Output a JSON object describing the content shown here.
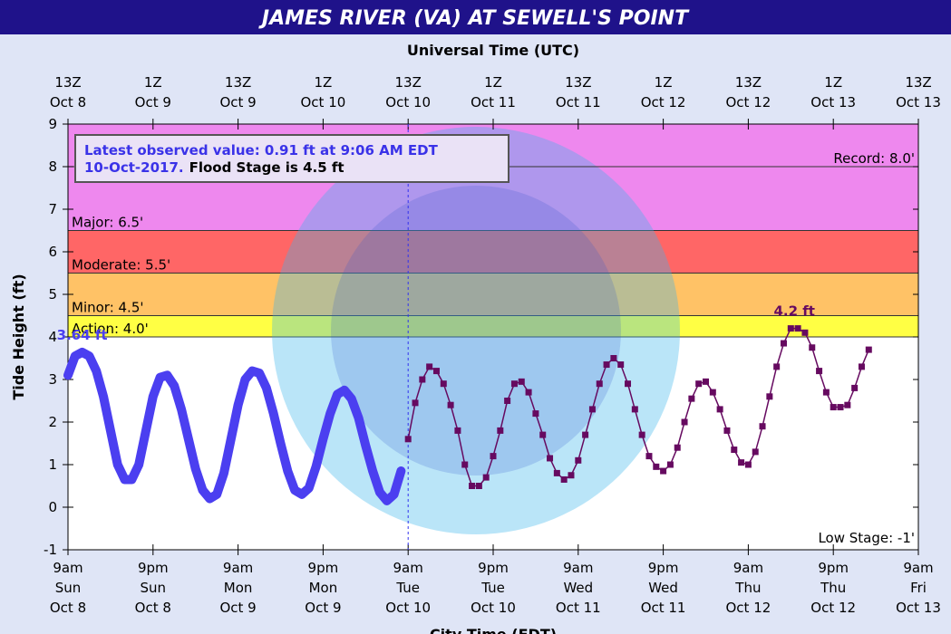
{
  "chart_data": {
    "type": "hydrograph",
    "title": "JAMES RIVER (VA) AT SEWELL'S POINT",
    "x2_label": "Universal Time (UTC)",
    "x_label": "City Time (EDT)",
    "y_label": "Tide Height (ft)",
    "xlim": [
      0,
      120
    ],
    "ylim": [
      -1,
      9
    ],
    "yticks": [
      -1,
      0,
      1,
      2,
      3,
      4,
      5,
      6,
      7,
      8,
      9
    ],
    "xticks": [
      {
        "value": 0,
        "label": "9am\nSun\nOct 8"
      },
      {
        "value": 12,
        "label": "9pm\nSun\nOct 8"
      },
      {
        "value": 24,
        "label": "9am\nMon\nOct 9"
      },
      {
        "value": 36,
        "label": "9pm\nMon\nOct 9"
      },
      {
        "value": 48,
        "label": "9am\nTue\nOct 10"
      },
      {
        "value": 60,
        "label": "9pm\nTue\nOct 10"
      },
      {
        "value": 72,
        "label": "9am\nWed\nOct 11"
      },
      {
        "value": 84,
        "label": "9pm\nWed\nOct 11"
      },
      {
        "value": 96,
        "label": "9am\nThu\nOct 12"
      },
      {
        "value": 108,
        "label": "9pm\nThu\nOct 12"
      },
      {
        "value": 120,
        "label": "9am\nFri\nOct 13"
      }
    ],
    "x2ticks": [
      {
        "value": 0,
        "label": "13Z\nOct 8"
      },
      {
        "value": 12,
        "label": "1Z\nOct 9"
      },
      {
        "value": 24,
        "label": "13Z\nOct 9"
      },
      {
        "value": 36,
        "label": "1Z\nOct 10"
      },
      {
        "value": 48,
        "label": "13Z\nOct 10"
      },
      {
        "value": 60,
        "label": "1Z\nOct 11"
      },
      {
        "value": 72,
        "label": "13Z\nOct 11"
      },
      {
        "value": 84,
        "label": "1Z\nOct 12"
      },
      {
        "value": 96,
        "label": "13Z\nOct 12"
      },
      {
        "value": 108,
        "label": "1Z\nOct 13"
      },
      {
        "value": 120,
        "label": "13Z\nOct 13"
      }
    ],
    "stages": [
      {
        "label": "Action: 4.0'",
        "value": 4.0,
        "color": "#ffff44"
      },
      {
        "label": "Minor: 4.5'",
        "value": 4.5,
        "color": "#ffc266"
      },
      {
        "label": "Moderate: 5.5'",
        "value": 5.5,
        "color": "#ff6666"
      },
      {
        "label": "Major: 6.5'",
        "value": 6.5,
        "color": "#ee88ee"
      }
    ],
    "record": {
      "label": "Record: 8.0'",
      "value": 8.0
    },
    "low_stage": {
      "label": "Low Stage: -1'",
      "value": -1
    },
    "current_time_x": 48,
    "info": {
      "line1": "Latest observed value: 0.91 ft at 9:06 AM EDT",
      "line2a": "10-Oct-2017.",
      "line2b": "Flood Stage is 4.5 ft"
    },
    "series": [
      {
        "name": "Observed",
        "color": "#4b3ff0",
        "x": [
          0,
          1,
          2,
          3,
          4,
          5,
          6,
          7,
          8,
          9,
          10,
          11,
          12,
          13,
          14,
          15,
          16,
          17,
          18,
          19,
          20,
          21,
          22,
          23,
          24,
          25,
          26,
          27,
          28,
          29,
          30,
          31,
          32,
          33,
          34,
          35,
          36,
          37,
          38,
          39,
          40,
          41,
          42,
          43,
          44,
          45,
          46,
          47
        ],
        "values": [
          3.1,
          3.55,
          3.64,
          3.55,
          3.2,
          2.6,
          1.8,
          1.0,
          0.65,
          0.65,
          1.0,
          1.8,
          2.6,
          3.05,
          3.1,
          2.85,
          2.3,
          1.6,
          0.9,
          0.4,
          0.2,
          0.3,
          0.8,
          1.6,
          2.4,
          3.0,
          3.2,
          3.15,
          2.8,
          2.2,
          1.5,
          0.85,
          0.4,
          0.3,
          0.45,
          0.95,
          1.6,
          2.2,
          2.65,
          2.75,
          2.55,
          2.1,
          1.45,
          0.85,
          0.35,
          0.15,
          0.3,
          0.85
        ]
      },
      {
        "name": "Forecast",
        "color": "#660a60",
        "x": [
          48,
          49,
          50,
          51,
          52,
          53,
          54,
          55,
          56,
          57,
          58,
          59,
          60,
          61,
          62,
          63,
          64,
          65,
          66,
          67,
          68,
          69,
          70,
          71,
          72,
          73,
          74,
          75,
          76,
          77,
          78,
          79,
          80,
          81,
          82,
          83,
          84,
          85,
          86,
          87,
          88,
          89,
          90,
          91,
          92,
          93,
          94,
          95,
          96,
          97,
          98,
          99,
          100,
          101,
          102,
          103,
          104,
          105,
          106,
          107,
          108,
          109,
          110,
          111,
          112,
          113
        ],
        "values": [
          1.6,
          2.45,
          3.0,
          3.3,
          3.2,
          2.9,
          2.4,
          1.8,
          1.0,
          0.5,
          0.5,
          0.7,
          1.2,
          1.8,
          2.5,
          2.9,
          2.95,
          2.7,
          2.2,
          1.7,
          1.15,
          0.8,
          0.65,
          0.75,
          1.1,
          1.7,
          2.3,
          2.9,
          3.35,
          3.5,
          3.35,
          2.9,
          2.3,
          1.7,
          1.2,
          0.95,
          0.85,
          1.0,
          1.4,
          2.0,
          2.55,
          2.9,
          2.95,
          2.7,
          2.3,
          1.8,
          1.35,
          1.05,
          1.0,
          1.3,
          1.9,
          2.6,
          3.3,
          3.85,
          4.2,
          4.2,
          4.1,
          3.75,
          3.2,
          2.7,
          2.35,
          2.35,
          2.4,
          2.8,
          3.3,
          3.7
        ]
      }
    ],
    "annotations": [
      {
        "text": "3.64 ft",
        "x": 2,
        "y": 3.64,
        "color": "#4b3ff0"
      },
      {
        "text": "4.2 ft",
        "x": 102.5,
        "y": 4.2,
        "color": "#660a60"
      }
    ]
  }
}
